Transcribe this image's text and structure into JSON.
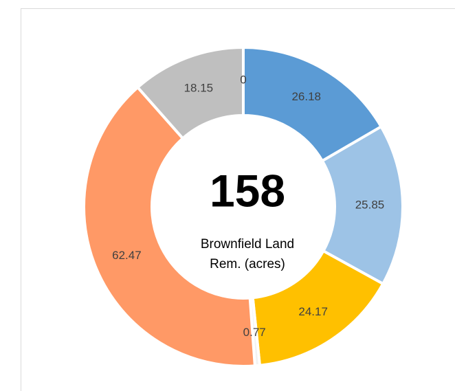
{
  "chart_data": {
    "type": "donut",
    "center_value": "158",
    "center_label": [
      "Brownfield Land",
      "Rem. (acres)"
    ],
    "values": [
      26.18,
      25.85,
      24.17,
      0.77,
      62.47,
      18.15,
      0
    ],
    "colors": [
      "#5b9bd5",
      "#9dc3e6",
      "#ffc000",
      "#f2f2f2",
      "#ff9966",
      "#bfbfbf",
      "#264478"
    ]
  }
}
